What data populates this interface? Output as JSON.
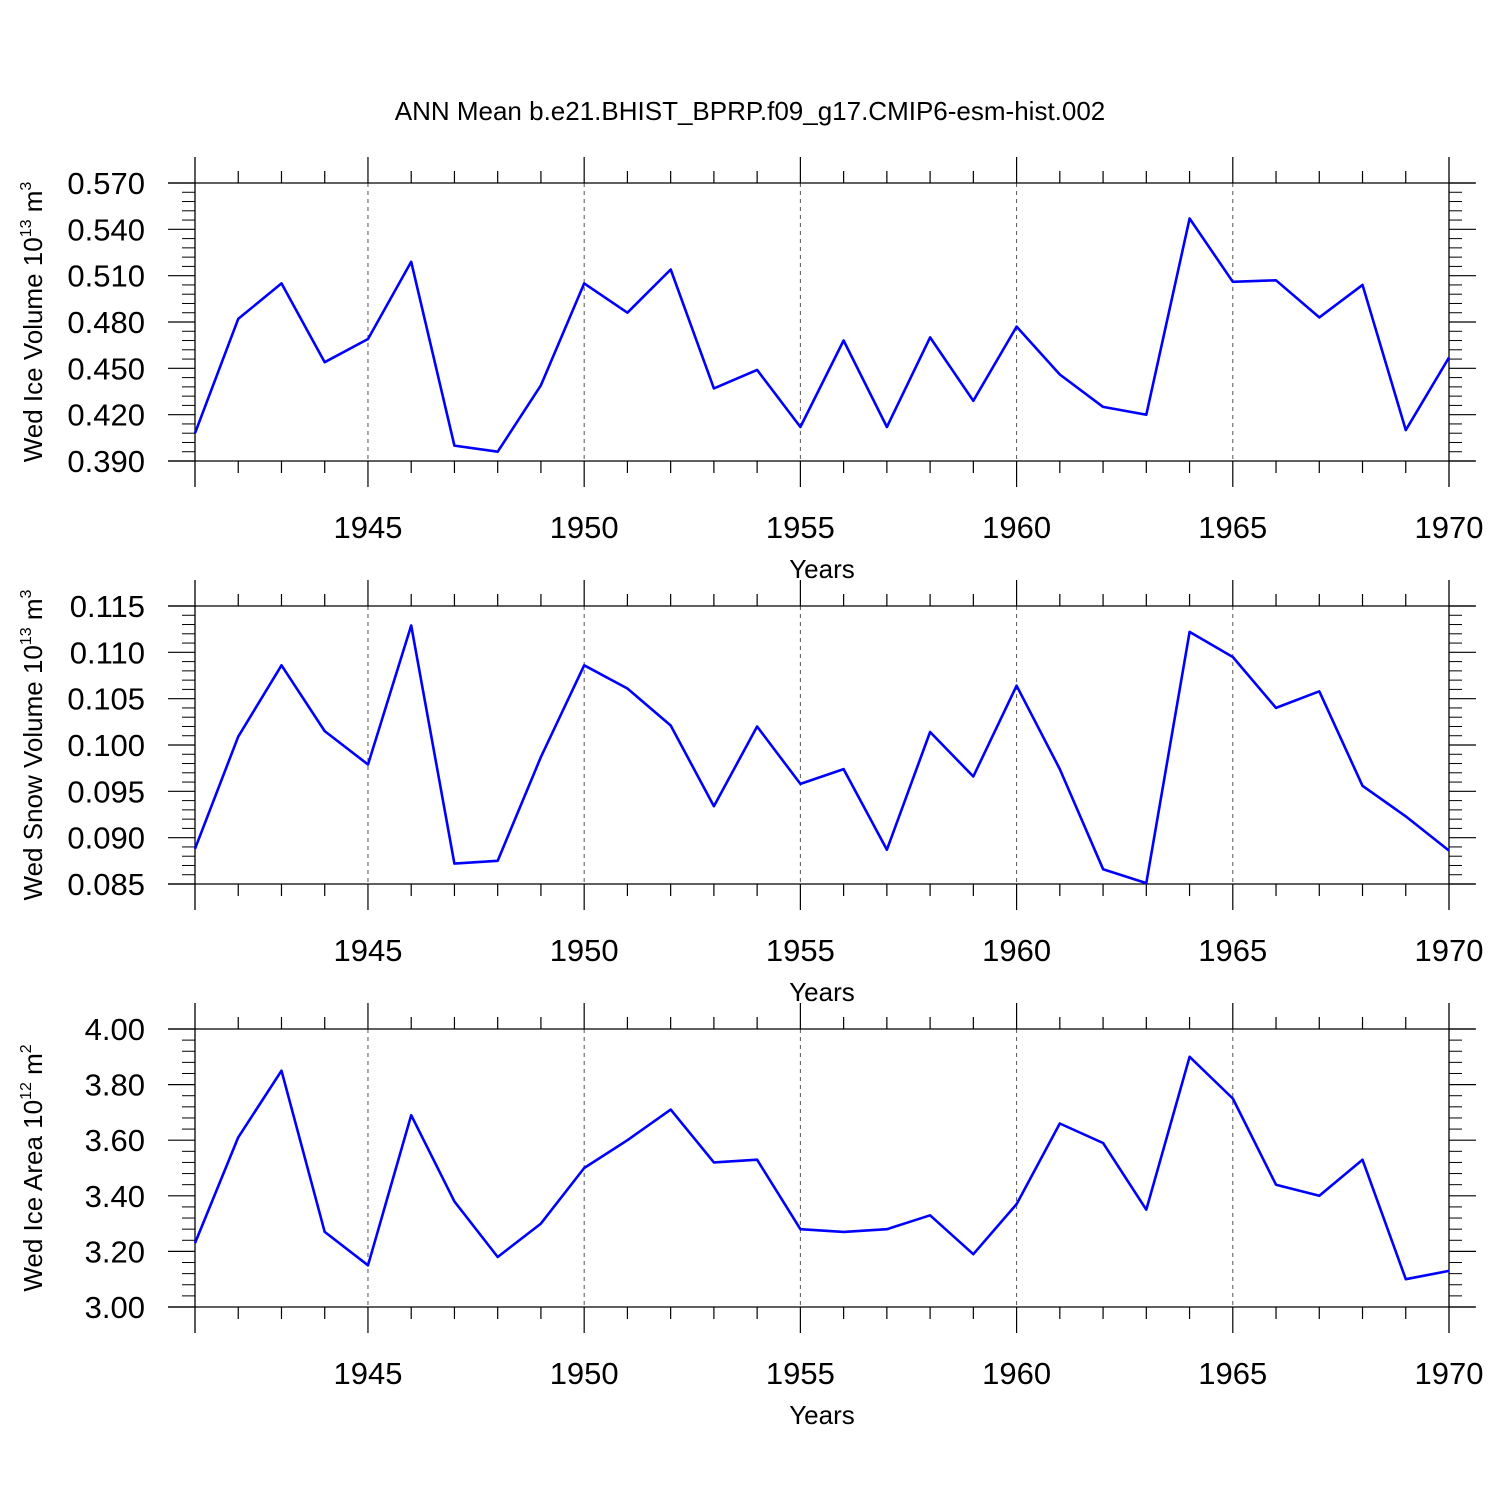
{
  "figure_title": "ANN Mean b.e21.BHIST_BPRP.f09_g17.CMIP6-esm-hist.002",
  "colors": {
    "line": "#0000ff",
    "axis": "#000000",
    "grid": "#555555"
  },
  "chart_data": [
    {
      "type": "line",
      "title": "",
      "xlabel": "Years",
      "ylabel": {
        "prefix": "Wed Ice Volume 10",
        "sup1": "13",
        "mid": " m",
        "sup2": "3"
      },
      "xlim": [
        1941,
        1970
      ],
      "ylim": [
        0.39,
        0.57
      ],
      "xticks": [
        "1945",
        "1950",
        "1955",
        "1960",
        "1965",
        "1970"
      ],
      "xtick_values": [
        1945,
        1950,
        1955,
        1960,
        1965,
        1970
      ],
      "yticks": [
        "0.390",
        "0.420",
        "0.450",
        "0.480",
        "0.510",
        "0.540",
        "0.570"
      ],
      "ytick_values": [
        0.39,
        0.42,
        0.45,
        0.48,
        0.51,
        0.54,
        0.57
      ],
      "grid": "vertical dashed at major x ticks",
      "x": [
        1941,
        1942,
        1943,
        1944,
        1945,
        1946,
        1947,
        1948,
        1949,
        1950,
        1951,
        1952,
        1953,
        1954,
        1955,
        1956,
        1957,
        1958,
        1959,
        1960,
        1961,
        1962,
        1963,
        1964,
        1965,
        1966,
        1967,
        1968,
        1969,
        1970
      ],
      "values": [
        0.408,
        0.482,
        0.505,
        0.454,
        0.469,
        0.519,
        0.4,
        0.396,
        0.439,
        0.505,
        0.486,
        0.514,
        0.437,
        0.449,
        0.412,
        0.468,
        0.412,
        0.47,
        0.429,
        0.477,
        0.446,
        0.425,
        0.42,
        0.547,
        0.506,
        0.507,
        0.483,
        0.504,
        0.41,
        0.457
      ]
    },
    {
      "type": "line",
      "title": "",
      "xlabel": "Years",
      "ylabel": {
        "prefix": "Wed Snow Volume 10",
        "sup1": "13",
        "mid": " m",
        "sup2": "3"
      },
      "xlim": [
        1941,
        1970
      ],
      "ylim": [
        0.085,
        0.115
      ],
      "xticks": [
        "1945",
        "1950",
        "1955",
        "1960",
        "1965",
        "1970"
      ],
      "xtick_values": [
        1945,
        1950,
        1955,
        1960,
        1965,
        1970
      ],
      "yticks": [
        "0.085",
        "0.090",
        "0.095",
        "0.100",
        "0.105",
        "0.110",
        "0.115"
      ],
      "ytick_values": [
        0.085,
        0.09,
        0.095,
        0.1,
        0.105,
        0.11,
        0.115
      ],
      "grid": "vertical dashed at major x ticks",
      "x": [
        1941,
        1942,
        1943,
        1944,
        1945,
        1946,
        1947,
        1948,
        1949,
        1950,
        1951,
        1952,
        1953,
        1954,
        1955,
        1956,
        1957,
        1958,
        1959,
        1960,
        1961,
        1962,
        1963,
        1964,
        1965,
        1966,
        1967,
        1968,
        1969,
        1970
      ],
      "values": [
        0.0888,
        0.1009,
        0.1086,
        0.1015,
        0.0979,
        0.1129,
        0.0872,
        0.0875,
        0.0987,
        0.1086,
        0.1061,
        0.1021,
        0.0934,
        0.102,
        0.0958,
        0.0974,
        0.0887,
        0.1014,
        0.0966,
        0.1064,
        0.0974,
        0.0866,
        0.0851,
        0.1122,
        0.1095,
        0.104,
        0.1058,
        0.0956,
        0.0923,
        0.0886
      ]
    },
    {
      "type": "line",
      "title": "",
      "xlabel": "Years",
      "ylabel": {
        "prefix": "Wed Ice Area 10",
        "sup1": "12",
        "mid": " m",
        "sup2": "2"
      },
      "xlim": [
        1941,
        1970
      ],
      "ylim": [
        3.0,
        4.0
      ],
      "xticks": [
        "1945",
        "1950",
        "1955",
        "1960",
        "1965",
        "1970"
      ],
      "xtick_values": [
        1945,
        1950,
        1955,
        1960,
        1965,
        1970
      ],
      "yticks": [
        "3.00",
        "3.20",
        "3.40",
        "3.60",
        "3.80",
        "4.00"
      ],
      "ytick_values": [
        3.0,
        3.2,
        3.4,
        3.6,
        3.8,
        4.0
      ],
      "grid": "vertical dashed at major x ticks",
      "x": [
        1941,
        1942,
        1943,
        1944,
        1945,
        1946,
        1947,
        1948,
        1949,
        1950,
        1951,
        1952,
        1953,
        1954,
        1955,
        1956,
        1957,
        1958,
        1959,
        1960,
        1961,
        1962,
        1963,
        1964,
        1965,
        1966,
        1967,
        1968,
        1969,
        1970
      ],
      "values": [
        3.23,
        3.61,
        3.85,
        3.27,
        3.15,
        3.69,
        3.38,
        3.18,
        3.3,
        3.5,
        3.6,
        3.71,
        3.52,
        3.53,
        3.28,
        3.27,
        3.28,
        3.33,
        3.19,
        3.37,
        3.66,
        3.59,
        3.35,
        3.9,
        3.75,
        3.44,
        3.4,
        3.53,
        3.1,
        3.13
      ]
    }
  ]
}
